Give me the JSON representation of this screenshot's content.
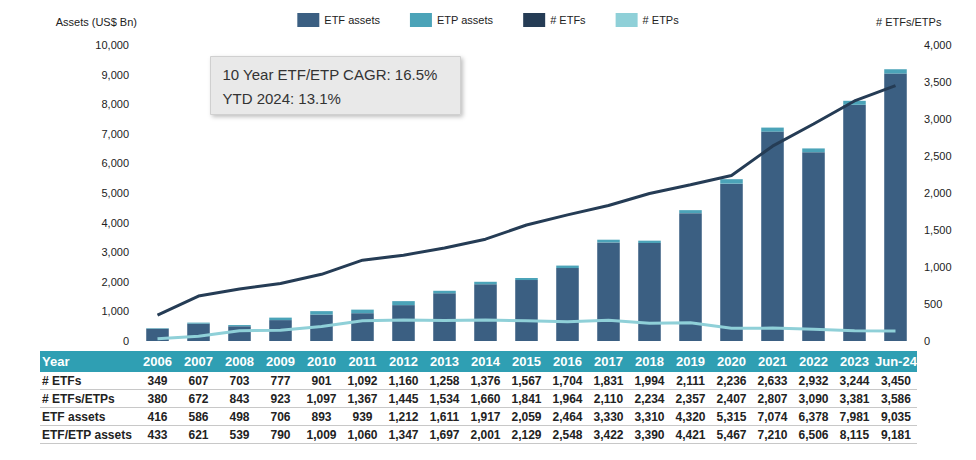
{
  "chart_data": {
    "type": "bar",
    "categories": [
      "2006",
      "2007",
      "2008",
      "2009",
      "2010",
      "2011",
      "2012",
      "2013",
      "2014",
      "2015",
      "2016",
      "2017",
      "2018",
      "2019",
      "2020",
      "2021",
      "2022",
      "2023",
      "Jun-24"
    ],
    "series": [
      {
        "name": "ETF assets",
        "type": "bar",
        "color": "#3b5f82",
        "values": [
          416,
          586,
          498,
          706,
          893,
          939,
          1212,
          1611,
          1917,
          2059,
          2464,
          3330,
          3310,
          4320,
          5315,
          7074,
          6378,
          7981,
          9035
        ]
      },
      {
        "name": "ETP assets",
        "type": "bar",
        "color": "#4ba3b8",
        "values": [
          17,
          35,
          41,
          84,
          116,
          121,
          135,
          86,
          84,
          70,
          84,
          92,
          80,
          101,
          152,
          136,
          128,
          134,
          146
        ]
      },
      {
        "name": "# ETFs",
        "type": "line",
        "axis": "y2",
        "color": "#253c55",
        "values": [
          349,
          607,
          703,
          777,
          901,
          1092,
          1160,
          1258,
          1376,
          1567,
          1704,
          1831,
          1994,
          2111,
          2236,
          2633,
          2932,
          3244,
          3450
        ]
      },
      {
        "name": "# ETPs",
        "type": "line",
        "axis": "y2",
        "color": "#8fd0d8",
        "values": [
          31,
          65,
          140,
          146,
          196,
          275,
          285,
          276,
          284,
          274,
          260,
          279,
          240,
          246,
          171,
          174,
          158,
          137,
          136
        ]
      }
    ],
    "y_label": "Assets (US$ Bn)",
    "y2_label": "# ETFs/ETPs",
    "annotations": [
      "10 Year ETF/ETP CAGR: 16.5%",
      "YTD 2024: 13.1%"
    ],
    "ylim": [
      0,
      10000
    ],
    "yticks": [
      0,
      {
        "value": 1000,
        "label": "1,000"
      },
      {
        "value": 2000,
        "label": "2,000"
      },
      {
        "value": 3000,
        "label": "3,000"
      },
      {
        "value": 4000,
        "label": "4,000"
      },
      {
        "value": 5000,
        "label": "5,000"
      },
      {
        "value": 6000,
        "label": "6,000"
      },
      {
        "value": 7000,
        "label": "7,000"
      },
      {
        "value": 8000,
        "label": "8,000"
      },
      {
        "value": 9000,
        "label": "9,000"
      },
      {
        "value": 10000,
        "label": "10,000"
      }
    ],
    "y2lim": [
      0,
      4000
    ],
    "y2ticks": [
      0,
      500,
      {
        "value": 1000,
        "label": "1,000"
      },
      {
        "value": 1500,
        "label": "1,500"
      },
      {
        "value": 2000,
        "label": "2,000"
      },
      {
        "value": 2500,
        "label": "2,500"
      },
      {
        "value": 3000,
        "label": "3,000"
      },
      {
        "value": 3500,
        "label": "3,500"
      },
      {
        "value": 4000,
        "label": "4,000"
      }
    ],
    "stacked": true,
    "grid": false,
    "legend": "top",
    "tick_labels": "y"
  },
  "table": {
    "header": [
      "Year",
      "2006",
      "2007",
      "2008",
      "2009",
      "2010",
      "2011",
      "2012",
      "2013",
      "2014",
      "2015",
      "2016",
      "2017",
      "2018",
      "2019",
      "2020",
      "2021",
      "2022",
      "2023",
      "Jun-24"
    ],
    "rows": [
      [
        "# ETFs",
        "349",
        "607",
        "703",
        "777",
        "901",
        "1,092",
        "1,160",
        "1,258",
        "1,376",
        "1,567",
        "1,704",
        "1,831",
        "1,994",
        "2,111",
        "2,236",
        "2,633",
        "2,932",
        "3,244",
        "3,450"
      ],
      [
        "# ETFs/ETPs",
        "380",
        "672",
        "843",
        "923",
        "1,097",
        "1,367",
        "1,445",
        "1,534",
        "1,660",
        "1,841",
        "1,964",
        "2,110",
        "2,234",
        "2,357",
        "2,407",
        "2,807",
        "3,090",
        "3,381",
        "3,586"
      ],
      [
        "ETF assets",
        "416",
        "586",
        "498",
        "706",
        "893",
        "939",
        "1,212",
        "1,611",
        "1,917",
        "2,059",
        "2,464",
        "3,330",
        "3,310",
        "4,320",
        "5,315",
        "7,074",
        "6,378",
        "7,981",
        "9,035"
      ],
      [
        "ETF/ETP assets",
        "433",
        "621",
        "539",
        "790",
        "1,009",
        "1,060",
        "1,347",
        "1,697",
        "2,001",
        "2,129",
        "2,548",
        "3,422",
        "3,390",
        "4,421",
        "5,467",
        "7,210",
        "6,506",
        "8,115",
        "9,181"
      ]
    ]
  }
}
